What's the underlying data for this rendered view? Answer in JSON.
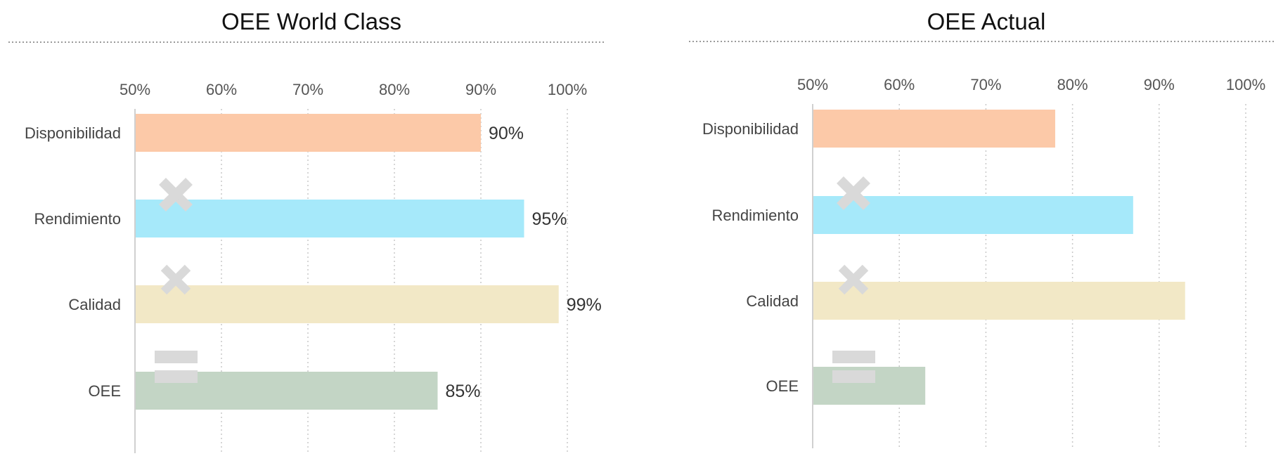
{
  "colors": {
    "disponibilidad": "#fcc9a8",
    "rendimiento": "#a6e9fa",
    "calidad": "#f2e8c6",
    "oee": "#c3d5c5",
    "operator": "#d9d9d9",
    "grid": "#c8c8c8",
    "axis": "#d0d0d0"
  },
  "chart_data": [
    {
      "type": "bar",
      "orientation": "horizontal",
      "title": "OEE World Class",
      "categories": [
        "Disponibilidad",
        "Rendimiento",
        "Calidad",
        "OEE"
      ],
      "values": [
        90,
        95,
        99,
        85
      ],
      "data_labels": [
        "90%",
        "95%",
        "99%",
        "85%"
      ],
      "xlim": [
        50,
        100
      ],
      "x_ticks": [
        "50%",
        "60%",
        "70%",
        "80%",
        "90%",
        "100%"
      ],
      "x_axis_position": "top",
      "grid": true,
      "operators": [
        "multiply",
        "multiply",
        "equals"
      ]
    },
    {
      "type": "bar",
      "orientation": "horizontal",
      "title": "OEE Actual",
      "categories": [
        "Disponibilidad",
        "Rendimiento",
        "Calidad",
        "OEE"
      ],
      "values": [
        78,
        87,
        93,
        63
      ],
      "xlim": [
        50,
        100
      ],
      "x_ticks": [
        "50%",
        "60%",
        "70%",
        "80%",
        "90%",
        "100%"
      ],
      "x_axis_position": "top",
      "grid": true,
      "operators": [
        "multiply",
        "multiply",
        "equals"
      ]
    }
  ]
}
